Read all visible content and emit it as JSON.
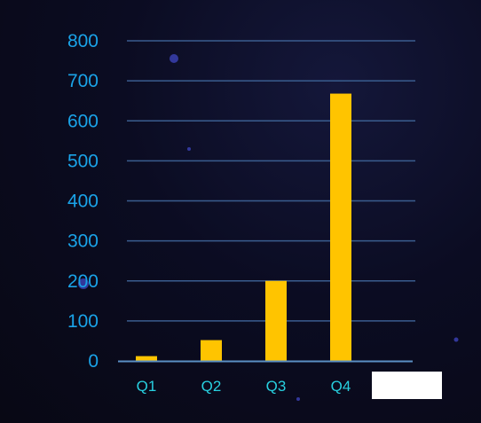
{
  "colors": {
    "bar": "#ffc400",
    "gridline": "#3a5d8f",
    "axis_line": "#5a8fc4",
    "y_tick_text": "#1aa3e8",
    "x_tick_text": "#28d0e0",
    "dot": "#3a3fb0"
  },
  "chart_data": {
    "type": "bar",
    "categories": [
      "Q1",
      "Q2",
      "Q3",
      "Q4"
    ],
    "values": [
      12,
      52,
      200,
      668
    ],
    "ylim": [
      0,
      800
    ],
    "yticks": [
      0,
      100,
      200,
      300,
      400,
      500,
      600,
      700,
      800
    ],
    "grid": true,
    "legend": "none"
  }
}
